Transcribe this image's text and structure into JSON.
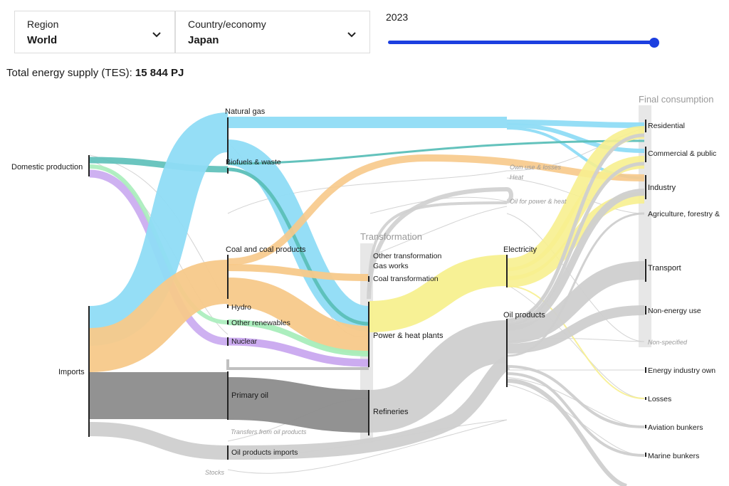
{
  "controls": {
    "region": {
      "label": "Region",
      "value": "World"
    },
    "country": {
      "label": "Country/economy",
      "value": "Japan"
    },
    "year": {
      "label": "2023",
      "value": 2023
    }
  },
  "tes": {
    "label": "Total energy supply (TES):",
    "value": "15 844 PJ"
  },
  "colors": {
    "natural_gas": "#8fdcf5",
    "coal": "#f7c98a",
    "nuclear": "#c9a8ef",
    "renewables": "#a8edbb",
    "biofuels": "#5bbfb8",
    "oil": "#b8b8b8",
    "oil_dark": "#8c8c8c",
    "electricity": "#f7f08f",
    "slider": "#1c3fe0"
  },
  "sankey": {
    "headers": {
      "transformation": "Transformation",
      "final": "Final consumption"
    },
    "sources": {
      "domestic": "Domestic production",
      "imports": "Imports"
    },
    "primary": {
      "natural_gas": "Natural gas",
      "biofuels": "Biofuels & waste",
      "coal": "Coal and coal products",
      "hydro": "Hydro",
      "other_renewables": "Other renewables",
      "nuclear": "Nuclear",
      "primary_oil": "Primary oil",
      "transfers": "Transfers from oil products",
      "oil_products_imports": "Oil products imports",
      "stocks": "Stocks"
    },
    "transformation": {
      "other": "Other transformation",
      "gas_works": "Gas works",
      "coal_transformation": "Coal transformation",
      "power_heat": "Power & heat plants",
      "refineries": "Refineries"
    },
    "secondary": {
      "own_use": "Own use & losses",
      "heat": "Heat",
      "oil_power": "Oil for power & heat",
      "electricity": "Electricity",
      "oil_products": "Oil products"
    },
    "final": {
      "residential": "Residential",
      "commercial": "Commercial & public",
      "industry": "Industry",
      "agriculture": "Agriculture, forestry &",
      "transport": "Transport",
      "non_energy": "Non-energy use",
      "non_specified": "Non-specified",
      "energy_industry": "Energy industry own",
      "losses": "Losses",
      "aviation": "Aviation bunkers",
      "marine": "Marine bunkers"
    }
  }
}
